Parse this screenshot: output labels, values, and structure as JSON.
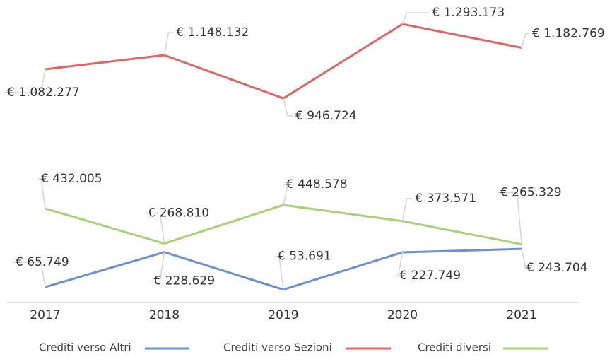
{
  "chart_data": {
    "type": "line",
    "categories": [
      "2017",
      "2018",
      "2019",
      "2020",
      "2021"
    ],
    "ylim": [
      0,
      1300000
    ],
    "series": [
      {
        "name": "Crediti verso Altri",
        "color": "#6e8fcd",
        "values": [
          65749,
          228629,
          53691,
          227749,
          243704
        ],
        "value_labels": [
          "€ 65.749",
          "€ 228.629",
          "€ 53.691",
          "€ 227.749",
          "€ 243.704"
        ]
      },
      {
        "name": "Crediti verso Sezioni",
        "color": "#d9676a",
        "values": [
          1082277,
          1148132,
          946724,
          1293173,
          1182769
        ],
        "value_labels": [
          "€ 1.082.277",
          "€ 1.148.132",
          "€ 946.724",
          "€ 1.293.173",
          "€ 1.182.769"
        ]
      },
      {
        "name": "Crediti diversi",
        "color": "#a9cf7b",
        "values": [
          432005,
          268810,
          448578,
          373571,
          265329
        ],
        "value_labels": [
          "€ 432.005",
          "€ 268.810",
          "€ 448.578",
          "€ 373.571",
          "€ 265.329"
        ]
      }
    ]
  }
}
